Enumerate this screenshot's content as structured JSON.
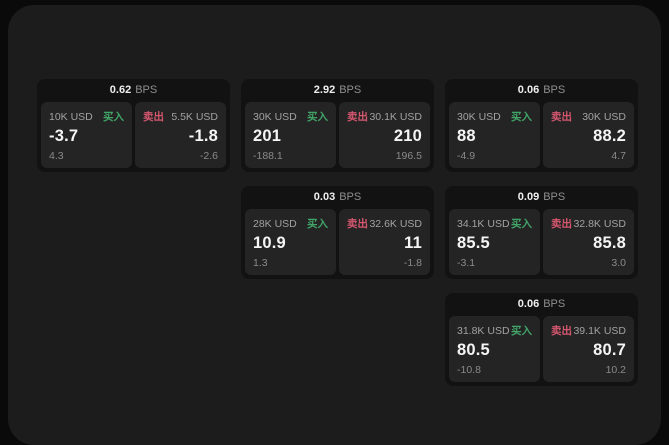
{
  "labels": {
    "buy": "买入",
    "sell": "卖出",
    "bps_unit": "BPS"
  },
  "colors": {
    "background": "#0a0a0a",
    "panel": "#1c1c1d",
    "card": "#121212",
    "side_panel": "#242425",
    "buy_green": "#42a568",
    "sell_red": "#d4576e",
    "text_primary": "#f5f5f5",
    "text_secondary": "#a2a2a2",
    "text_dim": "#8a8a8a"
  },
  "cards": [
    {
      "grid": {
        "col": 1,
        "row": 1
      },
      "bps": "0.62",
      "buy": {
        "amount": "10K USD",
        "value": "-3.7",
        "sub": "4.3"
      },
      "sell": {
        "amount": "5.5K USD",
        "value": "-1.8",
        "sub": "-2.6"
      }
    },
    {
      "grid": {
        "col": 2,
        "row": 1
      },
      "bps": "2.92",
      "buy": {
        "amount": "30K USD",
        "value": "201",
        "sub": "-188.1"
      },
      "sell": {
        "amount": "30.1K USD",
        "value": "210",
        "sub": "196.5"
      }
    },
    {
      "grid": {
        "col": 3,
        "row": 1
      },
      "bps": "0.06",
      "buy": {
        "amount": "30K USD",
        "value": "88",
        "sub": "-4.9"
      },
      "sell": {
        "amount": "30K USD",
        "value": "88.2",
        "sub": "4.7"
      }
    },
    {
      "grid": {
        "col": 2,
        "row": 2
      },
      "bps": "0.03",
      "buy": {
        "amount": "28K USD",
        "value": "10.9",
        "sub": "1.3"
      },
      "sell": {
        "amount": "32.6K USD",
        "value": "11",
        "sub": "-1.8"
      }
    },
    {
      "grid": {
        "col": 3,
        "row": 2
      },
      "bps": "0.09",
      "buy": {
        "amount": "34.1K USD",
        "value": "85.5",
        "sub": "-3.1"
      },
      "sell": {
        "amount": "32.8K USD",
        "value": "85.8",
        "sub": "3.0"
      }
    },
    {
      "grid": {
        "col": 3,
        "row": 3
      },
      "bps": "0.06",
      "buy": {
        "amount": "31.8K USD",
        "value": "80.5",
        "sub": "-10.8"
      },
      "sell": {
        "amount": "39.1K USD",
        "value": "80.7",
        "sub": "10.2"
      }
    }
  ]
}
